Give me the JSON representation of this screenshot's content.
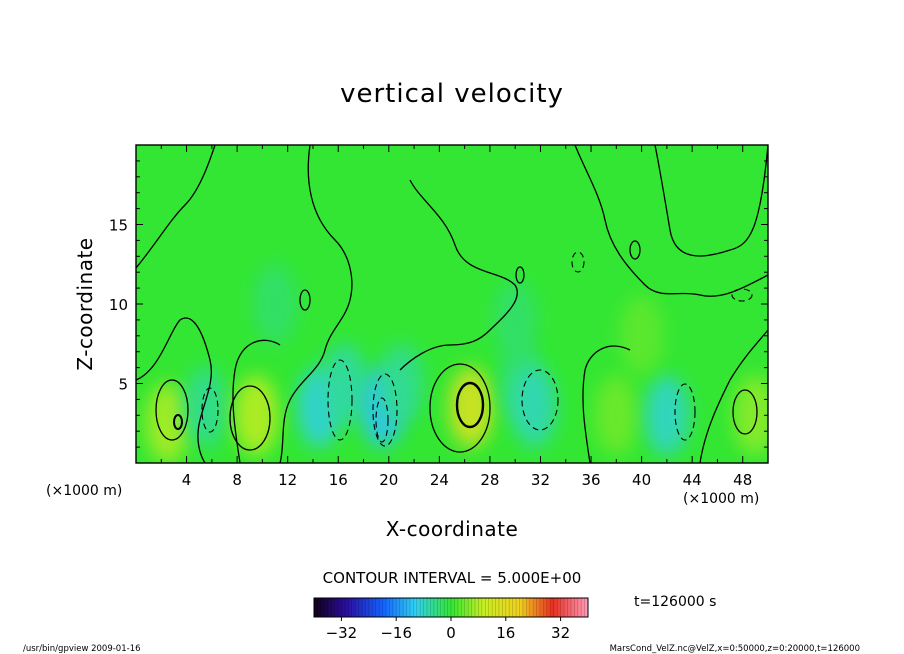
{
  "chart_data": {
    "type": "heatmap",
    "title": "vertical velocity",
    "xlabel": "X-coordinate",
    "ylabel": "Z-coordinate",
    "x_unit_left": "(×1000 m)",
    "x_unit_right": "(×1000 m)",
    "xlim": [
      0,
      50
    ],
    "ylim": [
      0,
      20
    ],
    "x_ticks": [
      "4",
      "8",
      "12",
      "16",
      "20",
      "24",
      "28",
      "32",
      "36",
      "40",
      "44",
      "48"
    ],
    "y_ticks": [
      "5",
      "10",
      "15"
    ],
    "contour_interval_label": "CONTOUR INTERVAL = 5.000E+00",
    "colorbar_ticks": [
      "−32",
      "−16",
      "0",
      "16",
      "32"
    ],
    "colorbar_range": [
      -40,
      40
    ],
    "time_label": "t=126000  s",
    "footer_left": "/usr/bin/gpview  2009-01-16",
    "footer_right": "MarsCond_VelZ.nc@VelZ,x=0:50000,z=0:20000,t=126000",
    "cells": [
      {
        "x": 2.5,
        "z": 2.5,
        "v": 8
      },
      {
        "x": 5.5,
        "z": 3.5,
        "v": -5
      },
      {
        "x": 9.5,
        "z": 3.0,
        "v": 9
      },
      {
        "x": 14.5,
        "z": 3.5,
        "v": -9
      },
      {
        "x": 16.5,
        "z": 5.0,
        "v": -6
      },
      {
        "x": 19.5,
        "z": 3.5,
        "v": -11
      },
      {
        "x": 21.0,
        "z": 5.0,
        "v": -5
      },
      {
        "x": 26.5,
        "z": 3.5,
        "v": 14
      },
      {
        "x": 30.5,
        "z": 5.0,
        "v": -4
      },
      {
        "x": 31.5,
        "z": 3.5,
        "v": -7
      },
      {
        "x": 38.0,
        "z": 3.0,
        "v": 4
      },
      {
        "x": 42.0,
        "z": 3.0,
        "v": -8
      },
      {
        "x": 49.0,
        "z": 3.0,
        "v": 6
      },
      {
        "x": 11.0,
        "z": 10.0,
        "v": -3
      },
      {
        "x": 30.0,
        "z": 9.0,
        "v": -3
      },
      {
        "x": 40.0,
        "z": 8.0,
        "v": 3
      }
    ]
  }
}
